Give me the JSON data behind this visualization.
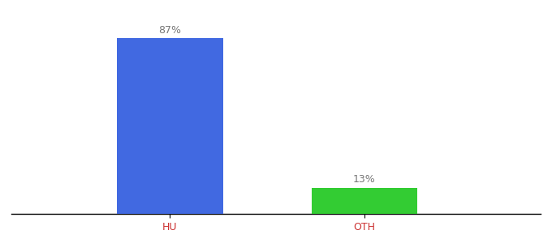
{
  "categories": [
    "HU",
    "OTH"
  ],
  "values": [
    87,
    13
  ],
  "bar_colors": [
    "#4169e1",
    "#33cc33"
  ],
  "label_texts": [
    "87%",
    "13%"
  ],
  "background_color": "#ffffff",
  "ylim": [
    0,
    100
  ],
  "bar_width": 0.18,
  "label_fontsize": 9,
  "tick_fontsize": 9,
  "tick_color": "#cc3333",
  "label_color": "#777777",
  "spine_color": "#000000",
  "x_positions": [
    0.32,
    0.65
  ],
  "xlim": [
    0.05,
    0.95
  ]
}
